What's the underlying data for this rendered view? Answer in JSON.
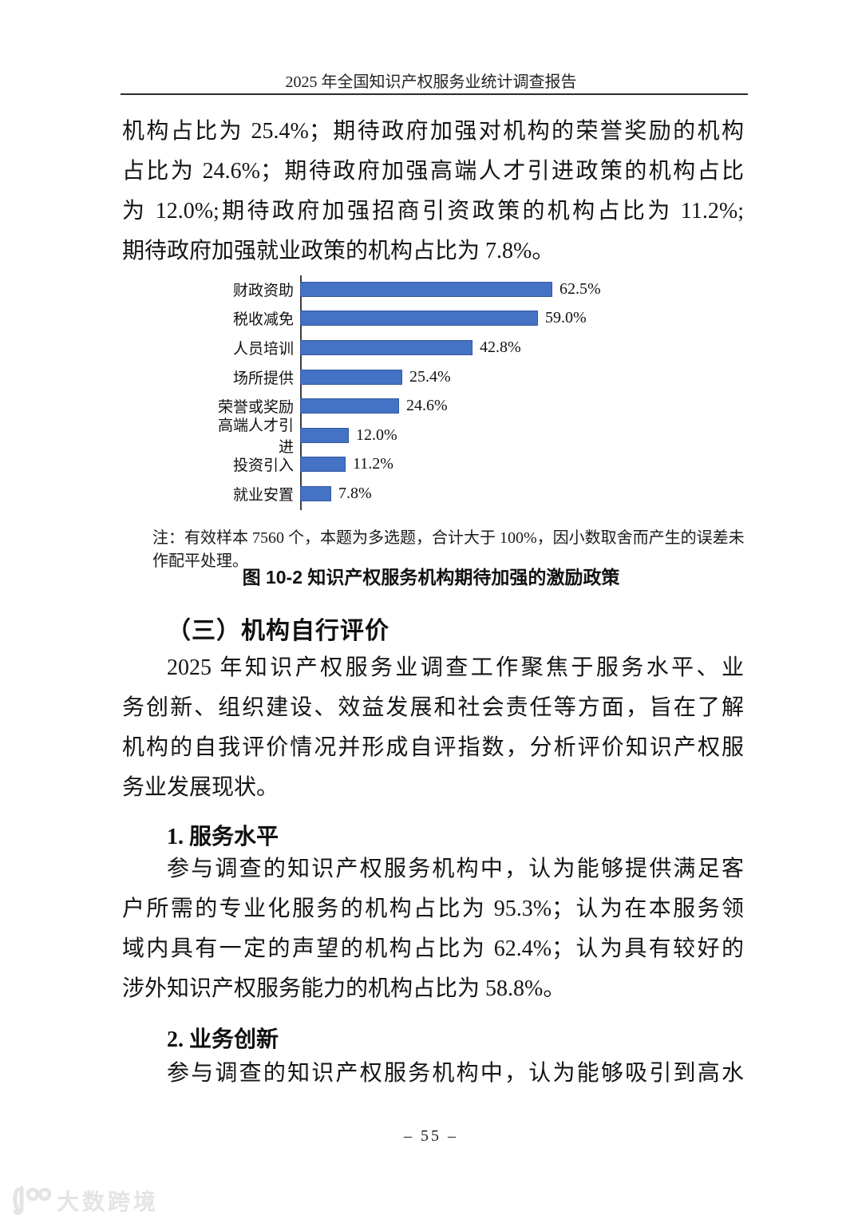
{
  "header": {
    "title": "2025 年全国知识产权服务业统计调查报告"
  },
  "paragraphs": {
    "p1": {
      "lines": [
        "机构占比为 25.4%；期待政府加强对机构的荣誉奖励的机构",
        "占比为 24.6%；期待政府加强高端人才引进政策的机构占比",
        "为 12.0%;期待政府加强招商引资政策的机构占比为 11.2%;",
        "期待政府加强就业政策的机构占比为 7.8%。"
      ]
    }
  },
  "chart_data": {
    "type": "bar",
    "orientation": "horizontal",
    "title": "图 10-2 知识产权服务机构期待加强的激励政策",
    "categories": [
      "财政资助",
      "税收减免",
      "人员培训",
      "场所提供",
      "荣誉或奖励",
      "高端人才引进",
      "投资引入",
      "就业安置"
    ],
    "values": [
      62.5,
      59.0,
      42.8,
      25.4,
      24.6,
      12.0,
      11.2,
      7.8
    ],
    "value_labels": [
      "62.5%",
      "59.0%",
      "42.8%",
      "25.4%",
      "24.6%",
      "12.0%",
      "11.2%",
      "7.8%"
    ],
    "xlim": [
      0,
      70
    ],
    "grid": false,
    "legend": "none",
    "bar_color": "#4472C4",
    "bar_border_color": "#35589F",
    "axis_color": "#3D3D3D",
    "note": "注：有效样本 7560 个，本题为多选题，合计大于 100%，因小数取舍而产生的误差未作配平处理。"
  },
  "sections": {
    "h3": {
      "title": "（三）机构自行评价",
      "paragraph": {
        "lines": [
          "2025 年知识产权服务业调查工作聚焦于服务水平、业",
          "务创新、组织建设、效益发展和社会责任等方面，旨在了解",
          "机构的自我评价情况并形成自评指数，分析评价知识产权服",
          "务业发展现状。"
        ]
      }
    },
    "sub1": {
      "title": "1. 服务水平",
      "paragraph": {
        "lines": [
          "参与调查的知识产权服务机构中，认为能够提供满足客",
          "户所需的专业化服务的机构占比为 95.3%；认为在本服务领",
          "域内具有一定的声望的机构占比为 62.4%；认为具有较好的",
          "涉外知识产权服务能力的机构占比为 58.8%。"
        ]
      }
    },
    "sub2": {
      "title": "2. 业务创新",
      "paragraph": {
        "lines": [
          "参与调查的知识产权服务机构中，认为能够吸引到高水"
        ]
      }
    }
  },
  "footer": {
    "page_number": "– 55 –",
    "watermark": "大数跨境"
  }
}
